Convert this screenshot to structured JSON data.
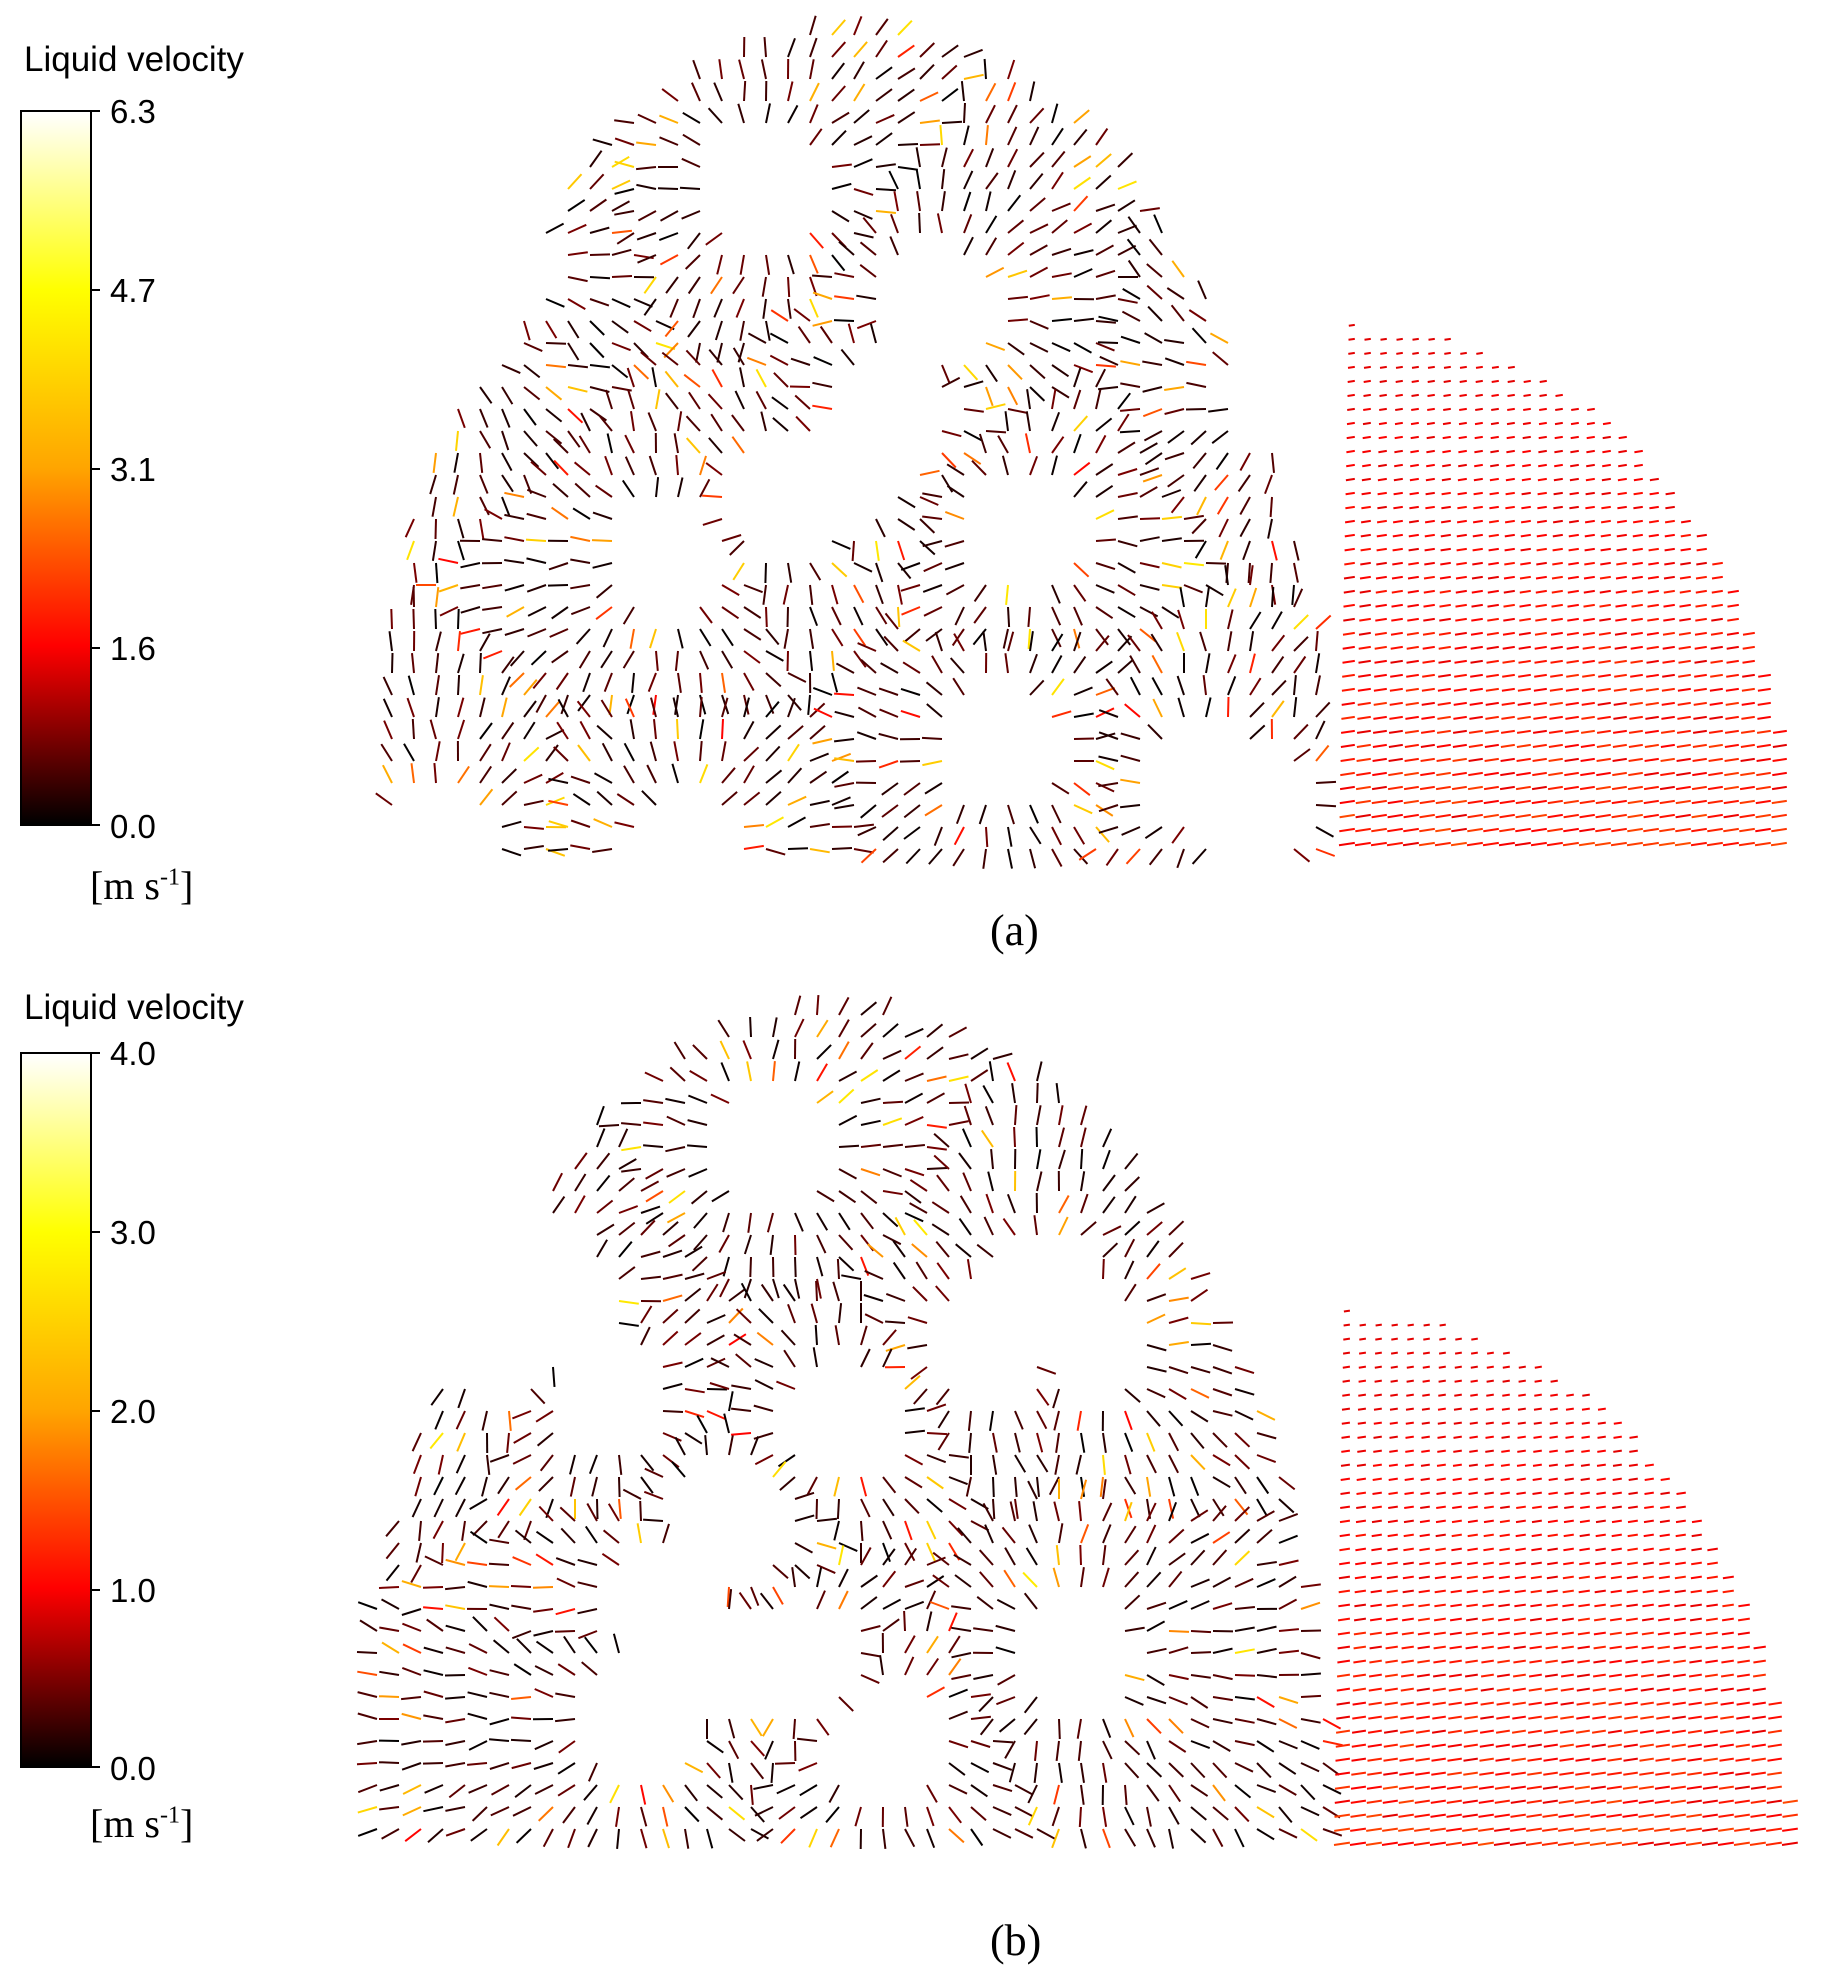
{
  "chart_data": [
    {
      "type": "vector-field",
      "panel_label": "(a)",
      "colorbar": {
        "title": "Liquid velocity",
        "unit_main": "[m s",
        "unit_sup": "-1",
        "unit_close": "]",
        "ticks": [
          "6.3",
          "4.7",
          "3.1",
          "1.6",
          "0.0"
        ],
        "tick_values": [
          6.3,
          4.7,
          3.1,
          1.6,
          0.0
        ],
        "range": [
          0.0,
          6.3
        ],
        "colormap": [
          "#000000",
          "#ff0000",
          "#ffa500",
          "#ffff00",
          "#ffffff"
        ]
      }
    },
    {
      "type": "vector-field",
      "panel_label": "(b)",
      "colorbar": {
        "title": "Liquid velocity",
        "unit_main": "[m s",
        "unit_sup": "-1",
        "unit_close": "]",
        "ticks": [
          "4.0",
          "3.0",
          "2.0",
          "1.0",
          "0.0"
        ],
        "tick_values": [
          4.0,
          3.0,
          2.0,
          1.0,
          0.0
        ],
        "range": [
          0.0,
          4.0
        ],
        "colormap": [
          "#000000",
          "#ff0000",
          "#ffa500",
          "#ffff00",
          "#ffffff"
        ]
      }
    }
  ]
}
